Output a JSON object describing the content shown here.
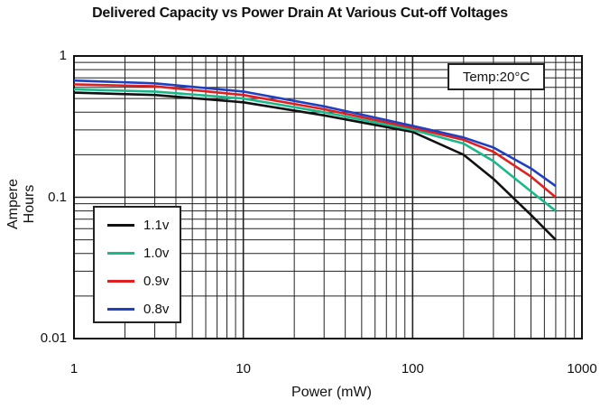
{
  "chart_data": {
    "type": "line",
    "title": "Delivered Capacity vs Power Drain At Various Cut-off Voltages",
    "xlabel": "Power (mW)",
    "ylabel": "Ampere Hours",
    "xscale": "log",
    "yscale": "log",
    "xlim": [
      1,
      1000
    ],
    "ylim": [
      0.01,
      1
    ],
    "x_ticks": [
      "1",
      "10",
      "100",
      "1000"
    ],
    "y_ticks": [
      "0.01",
      "0.1",
      "1"
    ],
    "grid": true,
    "legend_position": "bottom-left",
    "annotation": "Temp:20°C",
    "series": [
      {
        "name": "1.1v",
        "color": "#111111",
        "x": [
          1,
          3,
          10,
          30,
          100,
          200,
          300,
          500,
          700
        ],
        "y": [
          0.55,
          0.53,
          0.47,
          0.38,
          0.29,
          0.2,
          0.135,
          0.075,
          0.05
        ]
      },
      {
        "name": "1.0v",
        "color": "#1ab88a",
        "x": [
          1,
          3,
          10,
          30,
          100,
          200,
          300,
          500,
          700
        ],
        "y": [
          0.58,
          0.56,
          0.5,
          0.4,
          0.3,
          0.24,
          0.18,
          0.11,
          0.08
        ]
      },
      {
        "name": "0.9v",
        "color": "#e02020",
        "x": [
          1,
          3,
          10,
          30,
          100,
          200,
          300,
          500,
          700
        ],
        "y": [
          0.63,
          0.61,
          0.53,
          0.42,
          0.31,
          0.255,
          0.21,
          0.14,
          0.1
        ]
      },
      {
        "name": "0.8v",
        "color": "#2040c0",
        "x": [
          1,
          3,
          10,
          30,
          100,
          200,
          300,
          500,
          700
        ],
        "y": [
          0.67,
          0.64,
          0.56,
          0.44,
          0.32,
          0.265,
          0.225,
          0.16,
          0.12
        ]
      }
    ]
  }
}
